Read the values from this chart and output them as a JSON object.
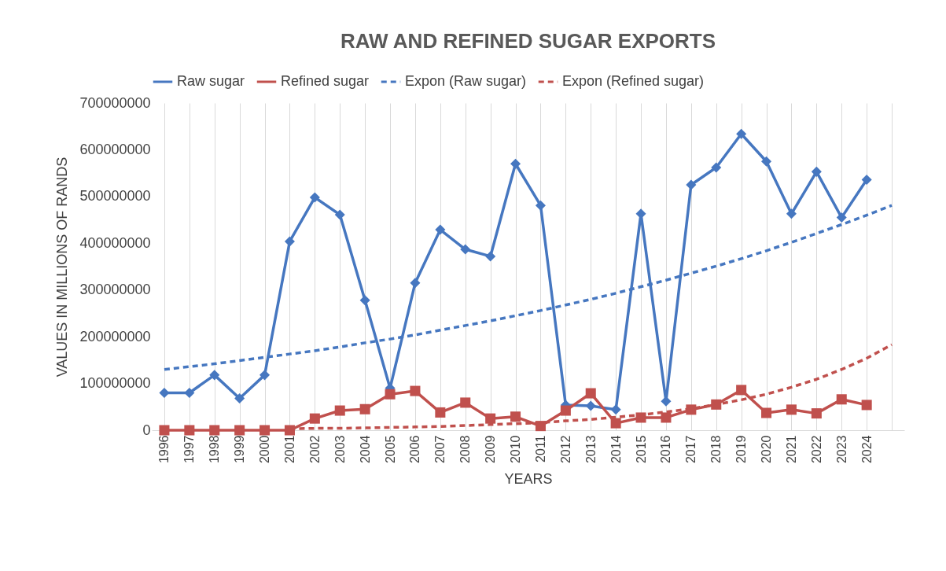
{
  "chart_data": {
    "type": "line",
    "title": "RAW AND REFINED SUGAR EXPORTS",
    "xlabel": "YEARS",
    "ylabel": "VALUES IN MILLIONS OF RANDS",
    "categories": [
      "1996",
      "1997",
      "1998",
      "1999",
      "2000",
      "2001",
      "2002",
      "2003",
      "2004",
      "2005",
      "2006",
      "2007",
      "2008",
      "2009",
      "2010",
      "2011",
      "2012",
      "2013",
      "2014",
      "2015",
      "2016",
      "2017",
      "2018",
      "2019",
      "2020",
      "2021",
      "2022",
      "2023",
      "2024",
      null
    ],
    "series": [
      {
        "name": "Raw sugar",
        "color": "#4677c0",
        "marker": "diamond",
        "line_style": "solid",
        "values": [
          80000000,
          80000000,
          118000000,
          68000000,
          118000000,
          404000000,
          498000000,
          461000000,
          278000000,
          90000000,
          315000000,
          429000000,
          387000000,
          372000000,
          570000000,
          481000000,
          54000000,
          52000000,
          44000000,
          463000000,
          62000000,
          525000000,
          562000000,
          634000000,
          575000000,
          463000000,
          553000000,
          455000000,
          536000000,
          null
        ]
      },
      {
        "name": "Refined sugar",
        "color": "#c0504d",
        "marker": "square",
        "line_style": "solid",
        "values": [
          0,
          0,
          0,
          0,
          0,
          0,
          25000000,
          42000000,
          45000000,
          77000000,
          84000000,
          38000000,
          59000000,
          25000000,
          29000000,
          9000000,
          42000000,
          79000000,
          15000000,
          27000000,
          27000000,
          44000000,
          55000000,
          86000000,
          37000000,
          44000000,
          36000000,
          66000000,
          54000000,
          null
        ]
      },
      {
        "name": "Expon (Raw sugar)",
        "color": "#4677c0",
        "marker": "none",
        "line_style": "dashed",
        "values": [
          130000000,
          136000000,
          142000000,
          149000000,
          156000000,
          163000000,
          170000000,
          178000000,
          187000000,
          195000000,
          204000000,
          214000000,
          224000000,
          234000000,
          245000000,
          256000000,
          268000000,
          280000000,
          293000000,
          307000000,
          321000000,
          336000000,
          351000000,
          367000000,
          384000000,
          402000000,
          421000000,
          440000000,
          460000000,
          481000000
        ]
      },
      {
        "name": "Expon (Refined sugar)",
        "color": "#c0504d",
        "marker": "none",
        "line_style": "dashed",
        "values": [
          null,
          null,
          null,
          null,
          null,
          3000000,
          4000000,
          4000000,
          5000000,
          6000000,
          7000000,
          8000000,
          10000000,
          12000000,
          14000000,
          16000000,
          20000000,
          23000000,
          28000000,
          33000000,
          39000000,
          46000000,
          55000000,
          65000000,
          77000000,
          92000000,
          109000000,
          130000000,
          154000000,
          183000000
        ]
      }
    ],
    "ylim": [
      0,
      700000000
    ],
    "yticks": [
      0,
      100000000,
      200000000,
      300000000,
      400000000,
      500000000,
      600000000,
      700000000
    ],
    "grid": "x",
    "legend": "top"
  }
}
